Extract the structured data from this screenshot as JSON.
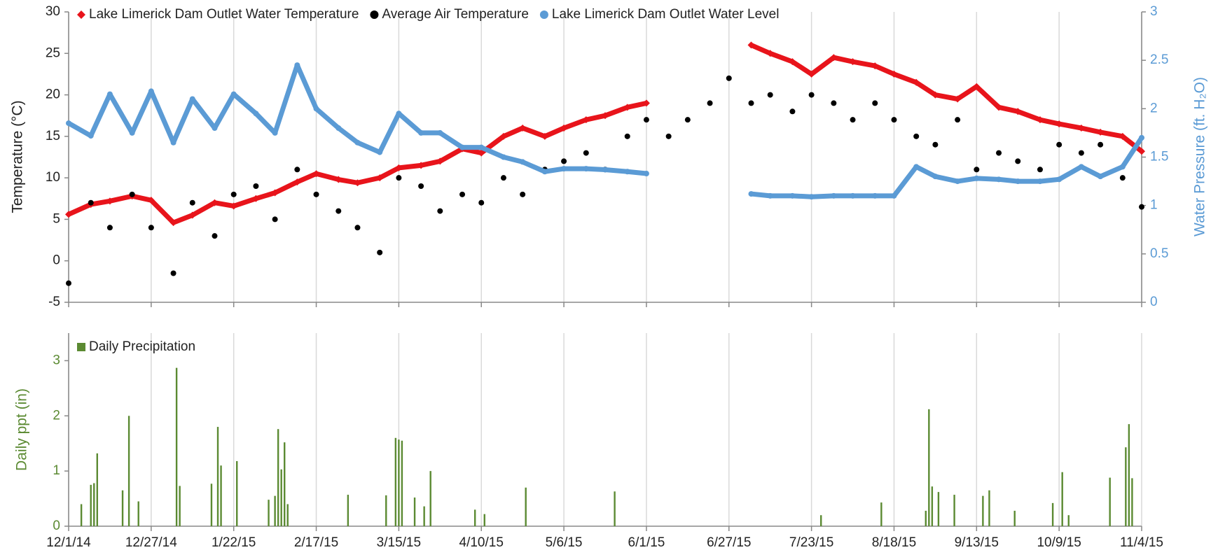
{
  "chart_data": [
    {
      "type": "scatter",
      "y_label": "Temperature (°C)",
      "y2_label": "Water Pressure (ft. H₂O)",
      "legend": "top-left",
      "grid_x": true,
      "xlim": [
        "12/1/14",
        "11/4/15"
      ],
      "xticks": [
        "12/1/14",
        "12/27/14",
        "1/22/15",
        "2/17/15",
        "3/15/15",
        "4/10/15",
        "5/6/15",
        "6/1/15",
        "6/27/15",
        "7/23/15",
        "8/18/15",
        "9/13/15",
        "10/9/15",
        "11/4/15"
      ],
      "ylim": [
        -5,
        30
      ],
      "yticks": [
        -5,
        0,
        5,
        10,
        15,
        20,
        25,
        30
      ],
      "y2lim": [
        0,
        3
      ],
      "y2ticks": [
        0,
        0.5,
        1,
        1.5,
        2,
        2.5,
        3
      ],
      "x": [
        "12/1/14",
        "12/8/14",
        "12/14/14",
        "12/21/14",
        "12/27/14",
        "1/3/15",
        "1/9/15",
        "1/16/15",
        "1/22/15",
        "1/29/15",
        "2/4/15",
        "2/11/15",
        "2/17/15",
        "2/24/15",
        "3/2/15",
        "3/9/15",
        "3/15/15",
        "3/22/15",
        "3/28/15",
        "4/4/15",
        "4/10/15",
        "4/17/15",
        "4/23/15",
        "4/30/15",
        "5/6/15",
        "5/13/15",
        "5/19/15",
        "5/26/15",
        "6/1/15",
        "6/8/15",
        "6/14/15",
        "6/21/15",
        "6/27/15",
        "7/4/15",
        "7/10/15",
        "7/17/15",
        "7/23/15",
        "7/30/15",
        "8/5/15",
        "8/12/15",
        "8/18/15",
        "8/25/15",
        "8/31/15",
        "9/7/15",
        "9/13/15",
        "9/20/15",
        "9/26/15",
        "10/3/15",
        "10/9/15",
        "10/16/15",
        "10/22/15",
        "10/29/15",
        "11/4/15"
      ],
      "series": [
        {
          "name": "Lake Limerick Dam Outlet Water Temperature",
          "color": "#e8141b",
          "marker": "diamond",
          "line": true,
          "values": [
            5.6,
            6.8,
            7.2,
            7.8,
            7.3,
            4.6,
            5.5,
            7,
            6.6,
            7.5,
            8.2,
            9.5,
            10.5,
            9.8,
            9.4,
            10,
            11.2,
            11.5,
            12,
            13.5,
            13,
            15,
            16,
            15,
            16,
            17,
            17.5,
            18.5,
            19,
            null,
            null,
            null,
            null,
            26,
            25,
            24,
            22.5,
            24.5,
            24,
            23.5,
            22.5,
            21.5,
            20,
            19.5,
            21,
            18.5,
            18,
            17,
            16.5,
            16,
            15.5,
            15,
            13.2
          ]
        },
        {
          "name": "Average Air Temperature",
          "color": "#000000",
          "marker": "circle",
          "line": false,
          "values": [
            -2.7,
            7,
            4,
            8,
            4,
            -1.5,
            7,
            3,
            8,
            9,
            5,
            11,
            8,
            6,
            4,
            1,
            10,
            9,
            6,
            8,
            7,
            10,
            8,
            11,
            12,
            13,
            11,
            15,
            17,
            15,
            17,
            19,
            22,
            19,
            20,
            18,
            20,
            19,
            17,
            19,
            17,
            15,
            14,
            17,
            11,
            13,
            12,
            11,
            14,
            13,
            14,
            10,
            6.5
          ]
        },
        {
          "name": "Lake Limerick Dam Outlet Water Level",
          "color": "#5b9bd5",
          "marker": "circle",
          "line": true,
          "axis": "y2",
          "values": [
            1.85,
            1.72,
            2.15,
            1.75,
            2.18,
            1.65,
            2.1,
            1.8,
            2.15,
            1.95,
            1.75,
            2.45,
            2.0,
            1.8,
            1.65,
            1.55,
            1.95,
            1.75,
            1.75,
            1.6,
            1.6,
            1.5,
            1.45,
            1.35,
            1.38,
            1.38,
            1.37,
            1.35,
            1.33,
            null,
            null,
            null,
            null,
            1.12,
            1.1,
            1.1,
            1.09,
            1.1,
            1.1,
            1.1,
            1.1,
            1.4,
            1.3,
            1.25,
            1.28,
            1.27,
            1.25,
            1.25,
            1.27,
            1.4,
            1.3,
            1.4,
            1.7
          ]
        }
      ]
    },
    {
      "type": "bar",
      "y_label": "Daily ppt (in)",
      "legend": "top-left",
      "grid_x": true,
      "xlim": [
        "12/1/14",
        "11/4/15"
      ],
      "xticks": [
        "12/1/14",
        "12/27/14",
        "1/22/15",
        "2/17/15",
        "3/15/15",
        "4/10/15",
        "5/6/15",
        "6/1/15",
        "6/27/15",
        "7/23/15",
        "8/18/15",
        "9/13/15",
        "10/9/15",
        "11/4/15"
      ],
      "ylim": [
        0,
        3.5
      ],
      "yticks": [
        0,
        1,
        2,
        3
      ],
      "x": [
        "12/5/14",
        "12/8/14",
        "12/9/14",
        "12/10/14",
        "12/18/14",
        "12/20/14",
        "12/23/14",
        "1/4/15",
        "1/5/15",
        "1/15/15",
        "1/17/15",
        "1/18/15",
        "1/23/15",
        "2/2/15",
        "2/4/15",
        "2/5/15",
        "2/6/15",
        "2/7/15",
        "2/8/15",
        "2/27/15",
        "3/11/15",
        "3/14/15",
        "3/15/15",
        "3/16/15",
        "3/20/15",
        "3/23/15",
        "3/25/15",
        "4/8/15",
        "4/11/15",
        "4/24/15",
        "5/22/15",
        "7/26/15",
        "8/14/15",
        "8/28/15",
        "8/29/15",
        "8/30/15",
        "9/1/15",
        "9/6/15",
        "9/15/15",
        "9/17/15",
        "9/25/15",
        "10/7/15",
        "10/10/15",
        "10/12/15",
        "10/25/15",
        "10/30/15",
        "10/31/15",
        "11/1/15"
      ],
      "series": [
        {
          "name": "Daily Precipitation",
          "color": "#5b8a32",
          "values": [
            0.4,
            0.75,
            0.78,
            1.32,
            0.65,
            2.0,
            0.45,
            2.87,
            0.73,
            0.77,
            1.8,
            1.1,
            1.18,
            0.48,
            0.55,
            1.76,
            1.03,
            1.52,
            0.4,
            0.57,
            0.56,
            1.6,
            1.57,
            1.55,
            0.52,
            0.36,
            1.0,
            0.3,
            0.22,
            0.7,
            0.63,
            0.2,
            0.43,
            0.28,
            2.12,
            0.72,
            0.62,
            0.57,
            0.55,
            0.65,
            0.28,
            0.42,
            0.98,
            0.2,
            0.88,
            1.43,
            1.85,
            0.87
          ]
        }
      ]
    }
  ]
}
